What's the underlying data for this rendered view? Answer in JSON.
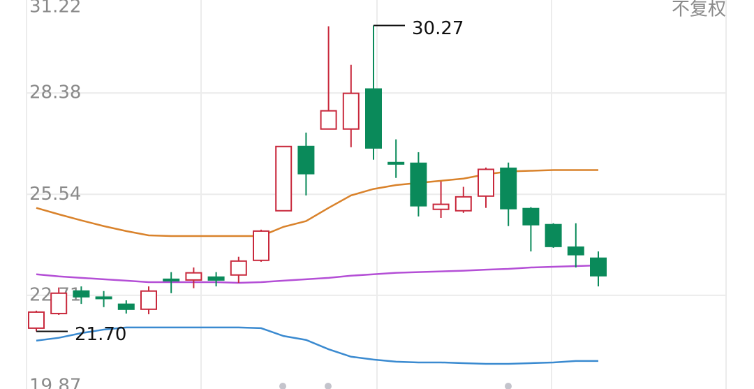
{
  "chart_data": {
    "type": "candlestick",
    "adjust_label": "不复权",
    "ylim": [
      19.87,
      31.22
    ],
    "yticks": [
      31.22,
      28.38,
      25.54,
      22.71,
      19.87
    ],
    "grid": true,
    "up_color": "#c8283c",
    "down_color": "#0a8a5a",
    "open": [
      21.79,
      22.2,
      22.83,
      22.66,
      22.46,
      22.32,
      23.16,
      23.14,
      23.22,
      23.28,
      23.69,
      25.08,
      26.88,
      27.37,
      27.37,
      28.49,
      26.43,
      26.41,
      25.12,
      25.08,
      25.49,
      26.27,
      25.14,
      24.69,
      24.06,
      23.75
    ],
    "high": [
      22.28,
      22.93,
      22.96,
      22.83,
      22.57,
      22.96,
      23.36,
      23.49,
      23.36,
      23.79,
      24.55,
      26.88,
      27.27,
      30.25,
      29.17,
      30.27,
      27.08,
      26.72,
      25.9,
      25.75,
      26.29,
      26.43,
      25.18,
      24.73,
      24.73,
      23.94
    ],
    "low": [
      21.7,
      22.16,
      22.47,
      22.38,
      22.2,
      22.18,
      22.77,
      22.91,
      22.96,
      23.06,
      23.65,
      25.08,
      25.51,
      27.37,
      26.86,
      26.51,
      26.0,
      24.92,
      24.88,
      25.02,
      25.16,
      24.65,
      23.94,
      24.04,
      23.49,
      22.96
    ],
    "close": [
      22.24,
      22.77,
      22.67,
      22.62,
      22.32,
      22.83,
      23.12,
      23.34,
      23.14,
      23.67,
      24.51,
      26.88,
      26.12,
      27.88,
      28.37,
      26.84,
      26.39,
      25.22,
      25.26,
      25.47,
      26.24,
      25.14,
      24.69,
      24.08,
      23.85,
      23.26
    ],
    "lines": [
      {
        "color": "#d9822b",
        "values": [
          25.16,
          24.98,
          24.81,
          24.65,
          24.51,
          24.39,
          24.37,
          24.37,
          24.37,
          24.37,
          24.37,
          24.63,
          24.79,
          25.16,
          25.51,
          25.69,
          25.8,
          25.86,
          25.92,
          25.98,
          26.1,
          26.18,
          26.2,
          26.22,
          26.22,
          26.22
        ]
      },
      {
        "color": "#b44fd6",
        "values": [
          23.3,
          23.24,
          23.2,
          23.16,
          23.12,
          23.08,
          23.08,
          23.08,
          23.08,
          23.06,
          23.08,
          23.12,
          23.16,
          23.2,
          23.26,
          23.3,
          23.34,
          23.36,
          23.38,
          23.4,
          23.43,
          23.45,
          23.49,
          23.51,
          23.53,
          23.55
        ]
      },
      {
        "color": "#3a8ad0",
        "values": [
          21.44,
          21.52,
          21.65,
          21.75,
          21.81,
          21.81,
          21.81,
          21.81,
          21.81,
          21.81,
          21.79,
          21.57,
          21.46,
          21.2,
          20.99,
          20.91,
          20.85,
          20.83,
          20.83,
          20.81,
          20.79,
          20.79,
          20.81,
          20.83,
          20.87,
          20.87
        ]
      }
    ],
    "annotations": [
      {
        "label": "30.27",
        "value": 30.27
      },
      {
        "label": "21.70",
        "value": 21.7
      }
    ]
  }
}
